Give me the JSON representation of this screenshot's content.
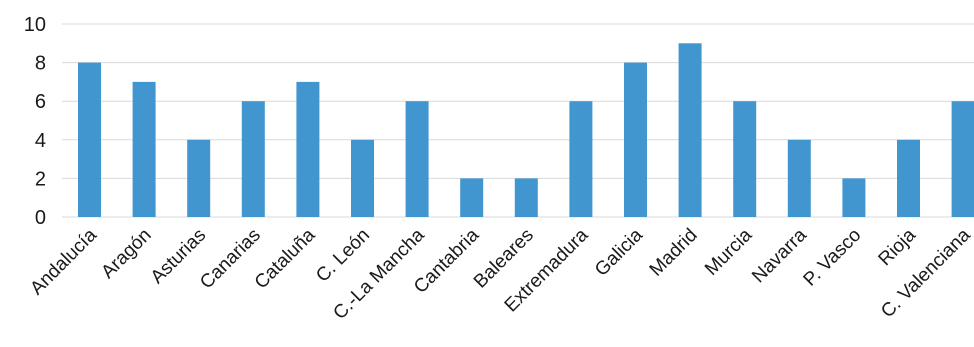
{
  "chart_data": {
    "type": "bar",
    "categories": [
      "Andalucía",
      "Aragón",
      "Asturias",
      "Canarias",
      "Cataluña",
      "C. León",
      "C.-La Mancha",
      "Cantabria",
      "Baleares",
      "Extremadura",
      "Galicia",
      "Madrid",
      "Murcia",
      "Navarra",
      "P. Vasco",
      "Rioja",
      "C. Valenciana"
    ],
    "values": [
      8,
      7,
      4,
      6,
      7,
      4,
      6,
      2,
      2,
      6,
      8,
      9,
      6,
      4,
      2,
      4,
      6
    ],
    "title": "",
    "xlabel": "",
    "ylabel": "",
    "ylim": [
      0,
      10
    ],
    "yticks": [
      0,
      2,
      4,
      6,
      8,
      10
    ],
    "grid": true,
    "bar_color": "#4196d0",
    "grid_color": "#d9d9d9"
  }
}
